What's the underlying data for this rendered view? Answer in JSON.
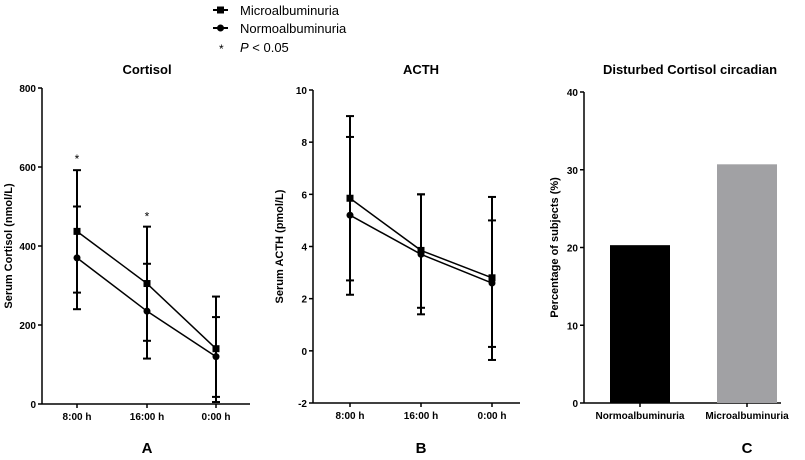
{
  "legend": {
    "items": [
      {
        "label": "Microalbuminuria",
        "marker": "square"
      },
      {
        "label": "Normoalbuminuria",
        "marker": "circle"
      }
    ],
    "sig_symbol": "*",
    "sig_p": "P",
    "sig_text": " < 0.05"
  },
  "chart_data": [
    {
      "type": "line",
      "panel_label": "A",
      "title": "Cortisol",
      "xlabel": "",
      "ylabel": "Serum Cortisol (nmol/L)",
      "categories": [
        "8:00 h",
        "16:00 h",
        "0:00 h"
      ],
      "ylim": [
        0,
        800
      ],
      "yticks": [
        0,
        200,
        400,
        600,
        800
      ],
      "series": [
        {
          "name": "Microalbuminuria",
          "marker": "square",
          "values": [
            437,
            305,
            140
          ],
          "err_low": [
            282,
            160,
            5
          ],
          "err_high": [
            592,
            449,
            272
          ]
        },
        {
          "name": "Normoalbuminuria",
          "marker": "circle",
          "values": [
            370,
            235,
            120
          ],
          "err_low": [
            240,
            115,
            18
          ],
          "err_high": [
            500,
            355,
            220
          ]
        }
      ],
      "annotations": [
        {
          "category": "8:00 h",
          "text": "*",
          "y": 625
        },
        {
          "category": "16:00 h",
          "text": "*",
          "y": 480
        }
      ]
    },
    {
      "type": "line",
      "panel_label": "B",
      "title": "ACTH",
      "xlabel": "",
      "ylabel": "Serum ACTH (pmol/L)",
      "categories": [
        "8:00 h",
        "16:00 h",
        "0:00 h"
      ],
      "ylim": [
        -2,
        10
      ],
      "yticks": [
        -2,
        0,
        2,
        4,
        6,
        8,
        10
      ],
      "series": [
        {
          "name": "Microalbuminuria",
          "marker": "square",
          "values": [
            5.85,
            3.85,
            2.8
          ],
          "err_low": [
            2.7,
            1.65,
            -0.35
          ],
          "err_high": [
            9.0,
            6.0,
            5.9
          ]
        },
        {
          "name": "Normoalbuminuria",
          "marker": "circle",
          "values": [
            5.2,
            3.7,
            2.6
          ],
          "err_low": [
            2.15,
            1.4,
            0.15
          ],
          "err_high": [
            8.2,
            6.0,
            5.0
          ]
        }
      ],
      "annotations": []
    },
    {
      "type": "bar",
      "panel_label": "C",
      "title": "Disturbed Cortisol circadian",
      "xlabel": "",
      "ylabel": "Percentage of subjects (%)",
      "categories": [
        "Normoalbuminuria",
        "Microalbuminuria"
      ],
      "values": [
        20.3,
        30.7
      ],
      "colors": [
        "#000000",
        "#a1a1a4"
      ],
      "ylim": [
        0,
        40
      ],
      "yticks": [
        0,
        10,
        20,
        30,
        40
      ]
    }
  ]
}
